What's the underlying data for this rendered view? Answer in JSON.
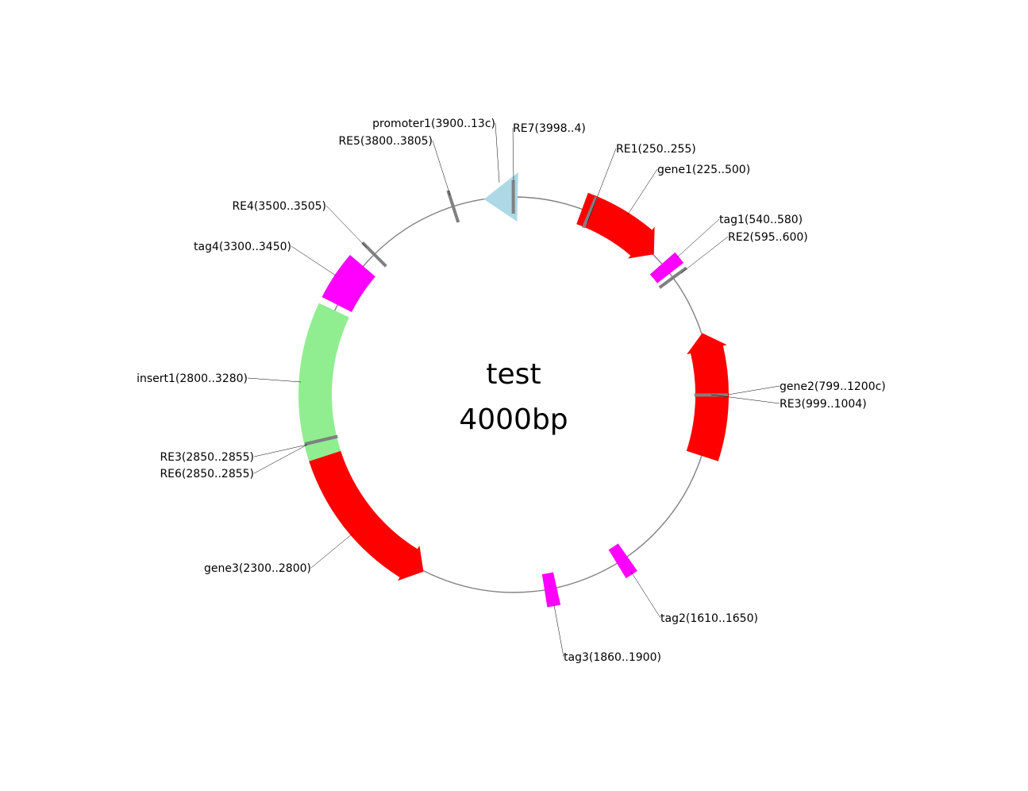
{
  "plasmid": {
    "name": "test",
    "length_label": "4000bp",
    "length": 4000
  },
  "colors": {
    "backbone": "#808080",
    "gene": "#ff0000",
    "tag": "#ff00ff",
    "insert": "#90ee90",
    "promoter": "#add8e6",
    "site": "#808080",
    "leader": "#000000"
  },
  "features": [
    {
      "id": "gene1",
      "type": "gene",
      "start": 225,
      "end": 500,
      "strand": 1,
      "label": "gene1(225..500)"
    },
    {
      "id": "tag1",
      "type": "tag",
      "start": 540,
      "end": 580,
      "strand": 0,
      "label": "tag1(540..580)"
    },
    {
      "id": "gene2",
      "type": "gene",
      "start": 799,
      "end": 1200,
      "strand": -1,
      "label": "gene2(799..1200c)"
    },
    {
      "id": "tag2",
      "type": "tag",
      "start": 1610,
      "end": 1650,
      "strand": 0,
      "label": "tag2(1610..1650)"
    },
    {
      "id": "tag3",
      "type": "tag",
      "start": 1860,
      "end": 1900,
      "strand": 0,
      "label": "tag3(1860..1900)"
    },
    {
      "id": "gene3",
      "type": "gene",
      "start": 2300,
      "end": 2800,
      "strand": -1,
      "label": "gene3(2300..2800)"
    },
    {
      "id": "insert1",
      "type": "insert",
      "start": 2800,
      "end": 3280,
      "strand": 0,
      "label": "insert1(2800..3280)"
    },
    {
      "id": "tag4",
      "type": "tag",
      "start": 3300,
      "end": 3450,
      "strand": 0,
      "label": "tag4(3300..3450)"
    },
    {
      "id": "promoter1",
      "type": "promoter",
      "start": 3900,
      "end": 13,
      "strand": -1,
      "label": "promoter1(3900..13c)"
    }
  ],
  "sites": [
    {
      "id": "RE1",
      "pos": 252,
      "label": "RE1(250..255)"
    },
    {
      "id": "RE2",
      "pos": 597,
      "label": "RE2(595..600)"
    },
    {
      "id": "RE3a",
      "pos": 1001,
      "label": "RE3(999..1004)"
    },
    {
      "id": "RE3b",
      "pos": 2852,
      "label": "RE3(2850..2855)"
    },
    {
      "id": "RE6",
      "pos": 2852,
      "label": "RE6(2850..2855)"
    },
    {
      "id": "RE4",
      "pos": 3502,
      "label": "RE4(3500..3505)"
    },
    {
      "id": "RE5",
      "pos": 3802,
      "label": "RE5(3800..3805)"
    },
    {
      "id": "RE7",
      "pos": 3999,
      "label": "RE7(3998..4)"
    }
  ]
}
